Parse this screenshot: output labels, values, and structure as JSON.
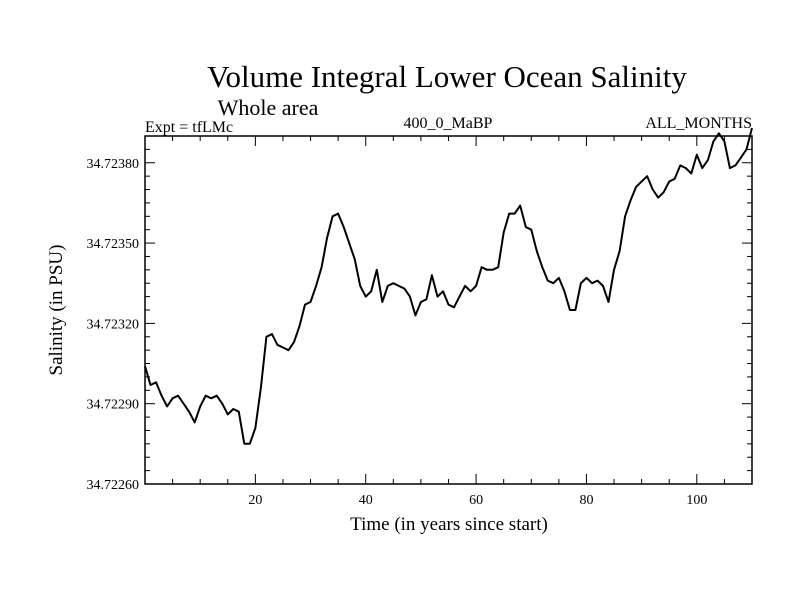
{
  "chart_data": {
    "type": "line",
    "title": "Volume Integral Lower Ocean Salinity",
    "subtitle": "Whole area",
    "left_label": "Expt = tfLMc",
    "center_label": "400_0_MaBP",
    "right_label": "ALL_MONTHS",
    "xlabel": "Time (in years since start)",
    "ylabel": "Salinity (in PSU)",
    "xlim": [
      0,
      110
    ],
    "ylim": [
      34.7226,
      34.7239
    ],
    "xticks": [
      20,
      40,
      60,
      80,
      100
    ],
    "xtick_labels": [
      "20",
      "40",
      "60",
      "80",
      "100"
    ],
    "yticks": [
      34.7226,
      34.7229,
      34.7232,
      34.7235,
      34.7238
    ],
    "ytick_labels": [
      "34.72260",
      "34.72290",
      "34.72320",
      "34.72350",
      "34.72380"
    ],
    "series": [
      {
        "name": "Salinity",
        "color": "#000000",
        "x": [
          0,
          1,
          2,
          3,
          4,
          5,
          6,
          7,
          8,
          9,
          10,
          11,
          12,
          13,
          14,
          15,
          16,
          17,
          18,
          19,
          20,
          21,
          22,
          23,
          24,
          25,
          26,
          27,
          28,
          29,
          30,
          31,
          32,
          33,
          34,
          35,
          36,
          37,
          38,
          39,
          40,
          41,
          42,
          43,
          44,
          45,
          46,
          47,
          48,
          49,
          50,
          51,
          52,
          53,
          54,
          55,
          56,
          57,
          58,
          59,
          60,
          61,
          62,
          63,
          64,
          65,
          66,
          67,
          68,
          69,
          70,
          71,
          72,
          73,
          74,
          75,
          76,
          77,
          78,
          79,
          80,
          81,
          82,
          83,
          84,
          85,
          86,
          87,
          88,
          89,
          90,
          91,
          92,
          93,
          94,
          95,
          96,
          97,
          98,
          99,
          100,
          101,
          102,
          103,
          104,
          105,
          106,
          107,
          108,
          109,
          110
        ],
        "y": [
          34.72304,
          34.72297,
          34.72298,
          34.72293,
          34.72289,
          34.72292,
          34.72293,
          34.7229,
          34.72287,
          34.72283,
          34.72289,
          34.72293,
          34.72292,
          34.72293,
          34.7229,
          34.72286,
          34.72288,
          34.72287,
          34.72275,
          34.72275,
          34.72281,
          34.72296,
          34.72315,
          34.72316,
          34.72312,
          34.72311,
          34.7231,
          34.72313,
          34.72319,
          34.72327,
          34.72328,
          34.72334,
          34.72341,
          34.72352,
          34.7236,
          34.72361,
          34.72356,
          34.7235,
          34.72344,
          34.72334,
          34.7233,
          34.72332,
          34.7234,
          34.72328,
          34.72334,
          34.72335,
          34.72334,
          34.72333,
          34.7233,
          34.72323,
          34.72328,
          34.72329,
          34.72338,
          34.7233,
          34.72332,
          34.72327,
          34.72326,
          34.7233,
          34.72334,
          34.72332,
          34.72334,
          34.72341,
          34.7234,
          34.7234,
          34.72341,
          34.72354,
          34.72361,
          34.72361,
          34.72364,
          34.72356,
          34.72355,
          34.72347,
          34.72341,
          34.72336,
          34.72335,
          34.72337,
          34.72332,
          34.72325,
          34.72325,
          34.72335,
          34.72337,
          34.72335,
          34.72336,
          34.72334,
          34.72328,
          34.7234,
          34.72347,
          34.7236,
          34.72366,
          34.72371,
          34.72373,
          34.72375,
          34.7237,
          34.72367,
          34.72369,
          34.72373,
          34.72374,
          34.72379,
          34.72378,
          34.72376,
          34.72383,
          34.72378,
          34.72381,
          34.72388,
          34.72391,
          34.72388,
          34.72378,
          34.72379,
          34.72382,
          34.72385,
          34.72393
        ]
      }
    ]
  }
}
